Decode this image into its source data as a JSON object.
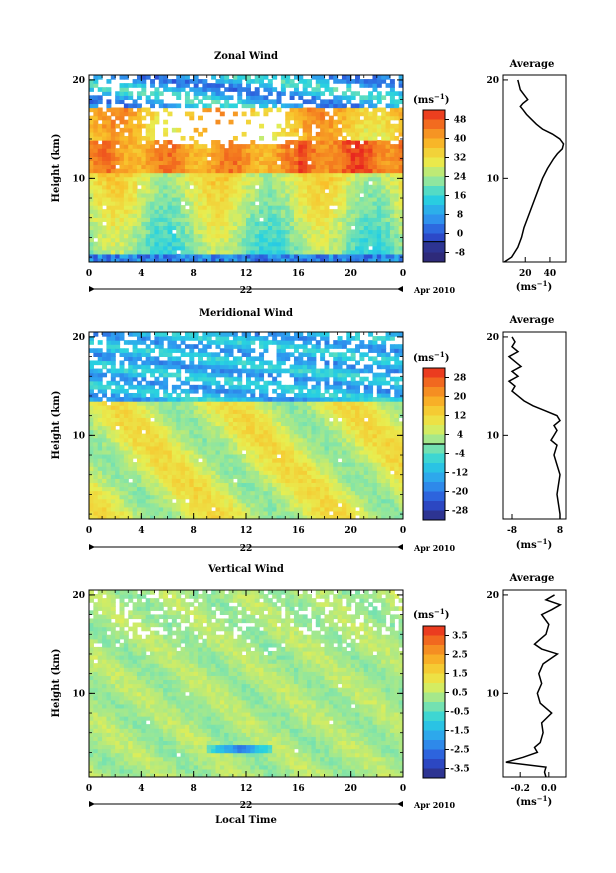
{
  "chart_data": [
    {
      "type": "heatmap",
      "title": "Zonal Wind",
      "ylabel": "Height (km)",
      "xlabel": "",
      "x_ticks": [
        "0",
        "4",
        "8",
        "12",
        "16",
        "20",
        "0"
      ],
      "y_ticks": [
        "10",
        "20"
      ],
      "xlim": [
        0,
        24
      ],
      "ylim": [
        1.5,
        20.5
      ],
      "date_day": "22",
      "date_month": "Apr 2010",
      "colorbar": {
        "unit_label": "(ms",
        "unit_sup": "−1",
        "unit_close": ")",
        "ticks": [
          "48",
          "40",
          "32",
          "24",
          "16",
          "8",
          "0",
          "-8"
        ],
        "range": [
          -8,
          52
        ],
        "contour_at": "0"
      },
      "profile": {
        "title": "Average",
        "xlabel": "(ms",
        "xlabel_sup": "−1",
        "xlabel_close": ")",
        "x_ticks": [
          "20",
          "40"
        ],
        "x_tick_values": [
          20,
          40
        ],
        "xlim": [
          2,
          53
        ],
        "y_ticks": [
          "10",
          "20"
        ],
        "height_km": [
          1.5,
          2,
          3,
          4,
          5,
          6,
          7,
          8,
          9,
          10,
          11,
          12,
          12.5,
          13,
          13.5,
          14,
          14.5,
          15,
          15.5,
          16,
          16.5,
          17,
          17.3,
          17.6,
          18,
          18.5,
          19,
          19.5,
          20
        ],
        "value": [
          3,
          9,
          14,
          17,
          19,
          22,
          25,
          28,
          31,
          34,
          38,
          43,
          46,
          50,
          51,
          48,
          42,
          34,
          29,
          25,
          21,
          18,
          16,
          18,
          22,
          19,
          16,
          15,
          14
        ]
      },
      "data_pattern": {
        "low_altitude_value": 20,
        "jet_peak_value": 46,
        "jet_height_km": 12.5,
        "upper_value": 10,
        "gap_band_km": [
          13.5,
          17
        ]
      }
    },
    {
      "type": "heatmap",
      "title": "Meridional Wind",
      "ylabel": "Height (km)",
      "xlabel": "",
      "x_ticks": [
        "0",
        "4",
        "8",
        "12",
        "16",
        "20",
        "0"
      ],
      "y_ticks": [
        "10",
        "20"
      ],
      "xlim": [
        0,
        24
      ],
      "ylim": [
        1.5,
        20.5
      ],
      "date_day": "22",
      "date_month": "Apr 2010",
      "colorbar": {
        "unit_label": "(ms",
        "unit_sup": "−1",
        "unit_close": ")",
        "ticks": [
          "28",
          "20",
          "12",
          "4",
          "-4",
          "-12",
          "-20",
          "-28"
        ],
        "range": [
          -32,
          32
        ],
        "contour_at": "0"
      },
      "profile": {
        "title": "Average",
        "xlabel": "(ms",
        "xlabel_sup": "−1",
        "xlabel_close": ")",
        "x_ticks": [
          "-8",
          "8"
        ],
        "x_tick_values": [
          -8,
          8
        ],
        "xlim": [
          -11,
          10
        ],
        "y_ticks": [
          "10",
          "20"
        ],
        "height_km": [
          1.5,
          2,
          3,
          4,
          5,
          6,
          7,
          8,
          9,
          9.5,
          10,
          10.5,
          11,
          11.5,
          12,
          12.5,
          13,
          13.5,
          14,
          14.5,
          15,
          15.5,
          16,
          16.5,
          17,
          17.5,
          18,
          18.5,
          19,
          19.5,
          20
        ],
        "value": [
          8,
          8,
          7.5,
          7,
          7.5,
          8,
          7,
          6,
          7,
          5,
          6,
          7,
          6,
          8,
          7,
          3,
          -1,
          -4,
          -6,
          -8,
          -7,
          -9,
          -6,
          -8,
          -5,
          -7,
          -9,
          -6,
          -8,
          -7,
          -8
        ]
      },
      "data_pattern": {
        "low_altitude_value": 6,
        "upper_value": -12,
        "transition_height_km": 13.5
      }
    },
    {
      "type": "heatmap",
      "title": "Vertical Wind",
      "ylabel": "Height (km)",
      "xlabel": "Local Time",
      "x_ticks": [
        "0",
        "4",
        "8",
        "12",
        "16",
        "20",
        "0"
      ],
      "y_ticks": [
        "10",
        "20"
      ],
      "xlim": [
        0,
        24
      ],
      "ylim": [
        1.5,
        20.5
      ],
      "date_day": "22",
      "date_month": "Apr 2010",
      "colorbar": {
        "unit_label": "(ms",
        "unit_sup": "−1",
        "unit_close": ")",
        "ticks": [
          "3.5",
          "2.5",
          "1.5",
          "0.5",
          "-0.5",
          "-1.5",
          "-2.5",
          "-3.5"
        ],
        "range": [
          -4,
          4
        ],
        "contour_at": ""
      },
      "profile": {
        "title": "Average",
        "xlabel": "(ms",
        "xlabel_sup": "−1",
        "xlabel_close": ")",
        "x_ticks": [
          "-0.2",
          "0.0"
        ],
        "x_tick_values": [
          -0.2,
          0.0
        ],
        "xlim": [
          -0.32,
          0.12
        ],
        "y_ticks": [
          "10",
          "20"
        ],
        "height_km": [
          1.5,
          2,
          2.5,
          3,
          3.5,
          4,
          4.5,
          5,
          6,
          7,
          8,
          9,
          10,
          11,
          12,
          13,
          14,
          14.5,
          15,
          15.5,
          16,
          17,
          18,
          18.5,
          19,
          19.5,
          20
        ],
        "value": [
          -0.02,
          -0.03,
          -0.02,
          -0.3,
          -0.18,
          -0.08,
          -0.1,
          -0.06,
          -0.04,
          -0.05,
          0.02,
          -0.06,
          -0.08,
          -0.05,
          -0.07,
          -0.04,
          0.06,
          -0.05,
          -0.1,
          -0.06,
          -0.02,
          0.0,
          -0.05,
          0.02,
          0.08,
          -0.02,
          0.04
        ]
      },
      "data_pattern": {
        "low_altitude_value": 0.3,
        "upper_value": 0.0,
        "negative_patch_value": -2.5,
        "negative_patch_height_km": 4.5
      }
    }
  ]
}
